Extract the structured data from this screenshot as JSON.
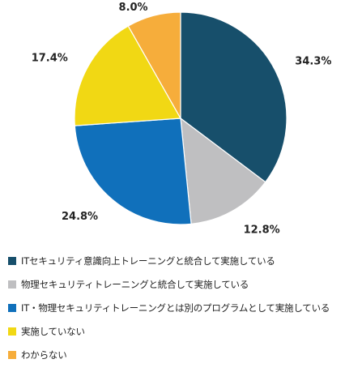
{
  "chart_data": {
    "type": "pie",
    "start_angle_deg": 0,
    "direction": "clockwise",
    "slices": [
      {
        "label": "ITセキュリティ意識向上トレーニングと統合して実施している",
        "value": 34.3,
        "display": "34.3%",
        "color": "#174f6b"
      },
      {
        "label": "物理セキュリティトレーニングと統合して実施している",
        "value": 12.8,
        "display": "12.8%",
        "color": "#bfbfc1"
      },
      {
        "label": "IT・物理セキュリティトレーニングとは別のプログラムとして実施している",
        "value": 24.8,
        "display": "24.8%",
        "color": "#1070bb"
      },
      {
        "label": "実施していない",
        "value": 17.4,
        "display": "17.4%",
        "color": "#f1d814"
      },
      {
        "label": "わからない",
        "value": 8.0,
        "display": "8.0%",
        "color": "#f6ad3b"
      }
    ],
    "legend_position": "bottom"
  }
}
